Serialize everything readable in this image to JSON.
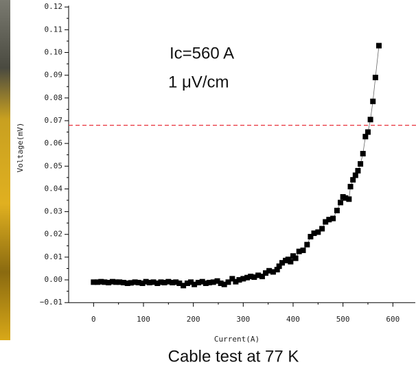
{
  "chart_data": {
    "type": "scatter",
    "x_label": "Current(A)",
    "y_label": "Voltage(mV)",
    "annotations": [
      "Ic=560 A",
      "1 μV/cm"
    ],
    "caption": "Cable test at 77 K",
    "series": [
      {
        "color": "#000000",
        "x": [
          0,
          8,
          15,
          22,
          30,
          38,
          45,
          52,
          60,
          68,
          75,
          83,
          90,
          98,
          105,
          112,
          120,
          128,
          135,
          142,
          150,
          158,
          165,
          172,
          180,
          188,
          195,
          202,
          210,
          218,
          225,
          232,
          240,
          248,
          255,
          262,
          270,
          278,
          285,
          292,
          300,
          308,
          315,
          322,
          330,
          338,
          345,
          352,
          360,
          368,
          372,
          378,
          385,
          390,
          395,
          400,
          405,
          412,
          420,
          428,
          435,
          442,
          450,
          458,
          465,
          472,
          480,
          488,
          495,
          500,
          505,
          512,
          515,
          520,
          525,
          530,
          535,
          540,
          545,
          550,
          555,
          560,
          565,
          572
        ],
        "values": [
          -0.001,
          -0.001,
          -0.0008,
          -0.001,
          -0.0012,
          -0.0008,
          -0.001,
          -0.001,
          -0.0012,
          -0.0015,
          -0.0013,
          -0.001,
          -0.0012,
          -0.0015,
          -0.0008,
          -0.0012,
          -0.001,
          -0.0015,
          -0.001,
          -0.0012,
          -0.0008,
          -0.0012,
          -0.001,
          -0.0015,
          -0.0025,
          -0.0015,
          -0.001,
          -0.002,
          -0.0012,
          -0.0008,
          -0.0015,
          -0.0012,
          -0.001,
          -0.0005,
          -0.0015,
          -0.002,
          -0.001,
          0.0005,
          -0.0008,
          0,
          0.0005,
          0.001,
          0.0015,
          0.0012,
          0.002,
          0.0015,
          0.003,
          0.004,
          0.0035,
          0.0045,
          0.006,
          0.0075,
          0.0085,
          0.009,
          0.008,
          0.0105,
          0.0095,
          0.0125,
          0.013,
          0.0155,
          0.019,
          0.0205,
          0.021,
          0.0225,
          0.0255,
          0.0265,
          0.027,
          0.0305,
          0.034,
          0.0365,
          0.036,
          0.0355,
          0.041,
          0.044,
          0.046,
          0.048,
          0.051,
          0.0555,
          0.063,
          0.065,
          0.0705,
          0.0785,
          0.089,
          0.103
        ]
      }
    ],
    "reference_line": {
      "value": 0.068,
      "color": "#e8303a"
    },
    "xlim": [
      -50,
      645
    ],
    "ylim": [
      -0.01,
      0.12
    ],
    "xticks": [
      0,
      100,
      200,
      300,
      400,
      500,
      600
    ],
    "yticks": [
      0.12,
      0.11,
      {
        "value": 0.1,
        "label": "0.10"
      },
      0.09,
      0.08,
      0.07,
      0.06,
      0.05,
      0.04,
      0.03,
      0.02,
      0.01,
      {
        "value": 0,
        "label": "0.00"
      },
      {
        "value": -0.01,
        "label": "−0.01"
      }
    ]
  }
}
